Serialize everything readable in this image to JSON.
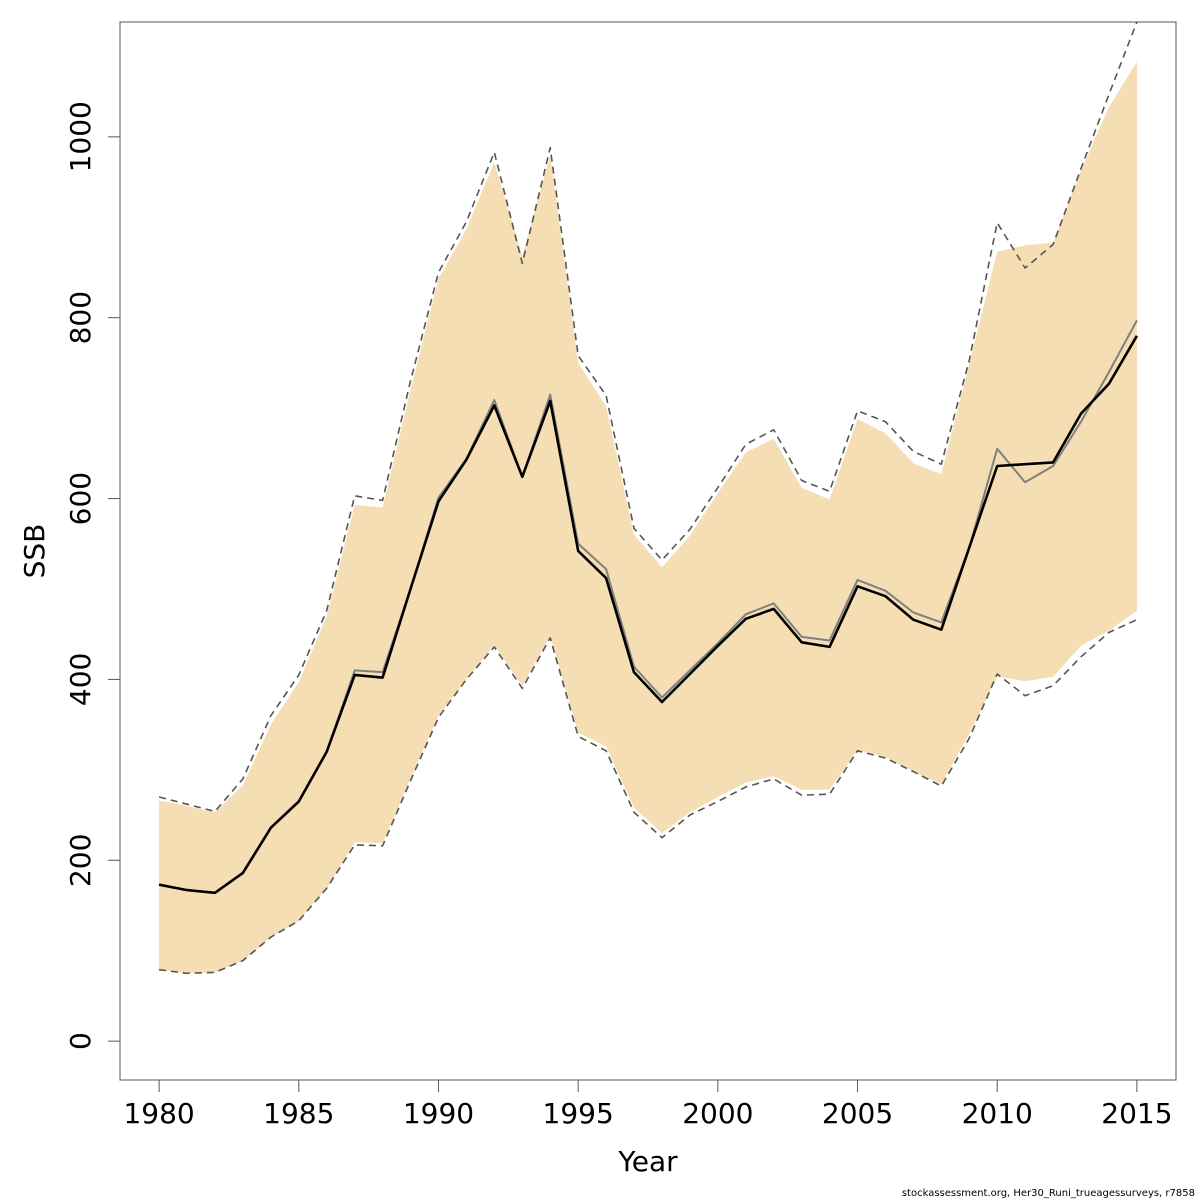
{
  "chart_data": {
    "type": "line",
    "xlabel": "Year",
    "ylabel": "SSB",
    "xlim": [
      1978.6,
      2016.4
    ],
    "ylim": [
      -43,
      1127
    ],
    "xticks": [
      1980,
      1985,
      1990,
      1995,
      2000,
      2005,
      2010,
      2015
    ],
    "yticks": [
      0,
      200,
      400,
      600,
      800,
      1000
    ],
    "footer": "stockassessment.org, Her30_Runi_trueagessurveys, r7858",
    "colors": {
      "band": "#f5deb3",
      "main": "#000000",
      "retro": "#808080",
      "retro_ci": "#555555"
    },
    "x": [
      1980,
      1981,
      1982,
      1983,
      1984,
      1985,
      1986,
      1987,
      1988,
      1989,
      1990,
      1991,
      1992,
      1993,
      1994,
      1995,
      1996,
      1997,
      1998,
      1999,
      2000,
      2001,
      2002,
      2003,
      2004,
      2005,
      2006,
      2007,
      2008,
      2009,
      2010,
      2011,
      2012,
      2013,
      2014,
      2015
    ],
    "band": {
      "name": "confidence interval",
      "upper": [
        266,
        260,
        253,
        283,
        350,
        397,
        470,
        593,
        590,
        720,
        843,
        898,
        972,
        868,
        980,
        750,
        702,
        560,
        524,
        559,
        606,
        651,
        666,
        612,
        599,
        688,
        672,
        639,
        627,
        749,
        873,
        880,
        883,
        963,
        1033,
        1083
      ],
      "lower": [
        79,
        75,
        76,
        89,
        115,
        133,
        169,
        220,
        219,
        290,
        360,
        400,
        438,
        393,
        448,
        341,
        326,
        258,
        230,
        253,
        270,
        286,
        293,
        278,
        278,
        322,
        314,
        298,
        284,
        340,
        403,
        398,
        403,
        437,
        454,
        476
      ]
    },
    "series": [
      {
        "role": "estimate",
        "values": [
          173,
          167,
          164,
          186,
          236,
          265,
          320,
          405,
          402,
          500,
          597,
          643,
          703,
          624,
          708,
          542,
          512,
          408,
          375,
          406,
          437,
          467,
          478,
          441,
          436,
          503,
          492,
          466,
          455,
          546,
          636,
          638,
          640,
          694,
          727,
          780
        ]
      },
      {
        "role": "retrospective estimate",
        "values": [
          173,
          167,
          164,
          186,
          236,
          265,
          320,
          410,
          408,
          500,
          601,
          644,
          709,
          624,
          715,
          550,
          522,
          414,
          380,
          410,
          440,
          472,
          484,
          447,
          443,
          510,
          498,
          474,
          463,
          546,
          655,
          618,
          636,
          685,
          740,
          797
        ]
      },
      {
        "role": "retrospective upper bound",
        "values": [
          270,
          262,
          254,
          290,
          360,
          405,
          476,
          603,
          598,
          730,
          850,
          906,
          983,
          860,
          988,
          758,
          714,
          567,
          532,
          566,
          612,
          660,
          676,
          620,
          608,
          697,
          685,
          652,
          638,
          753,
          905,
          855,
          881,
          965,
          1047,
          1127
        ]
      },
      {
        "role": "retrospective lower bound",
        "values": [
          79,
          75,
          76,
          89,
          115,
          133,
          169,
          217,
          216,
          288,
          358,
          400,
          436,
          390,
          446,
          337,
          321,
          253,
          225,
          250,
          265,
          281,
          290,
          272,
          273,
          321,
          313,
          298,
          282,
          335,
          406,
          382,
          393,
          425,
          452,
          466
        ]
      }
    ]
  }
}
